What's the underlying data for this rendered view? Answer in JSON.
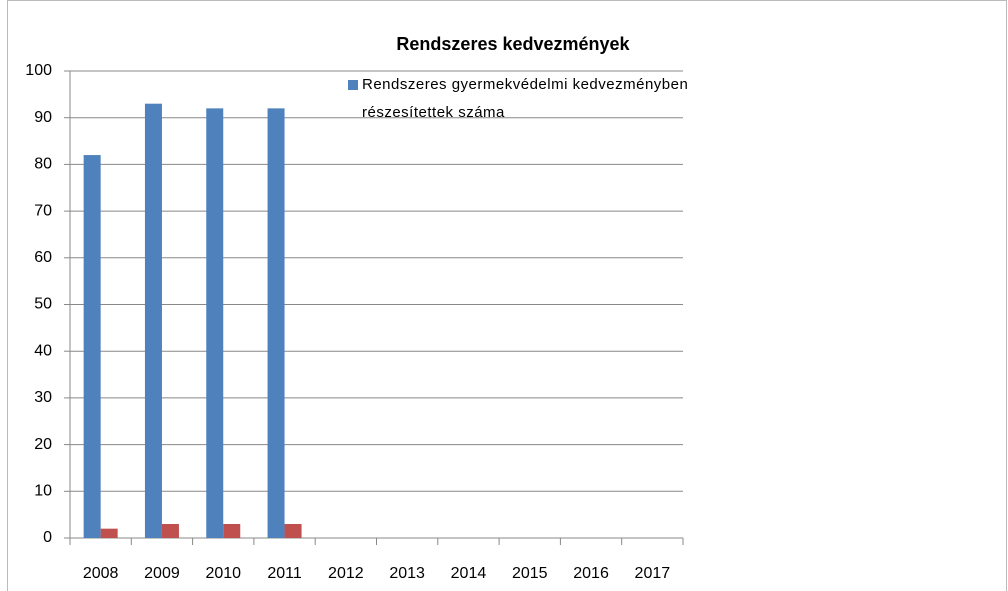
{
  "chart_data": {
    "type": "bar",
    "title": "Rendszeres kedvezmények",
    "categories": [
      "2008",
      "2009",
      "2010",
      "2011",
      "2012",
      "2013",
      "2014",
      "2015",
      "2016",
      "2017"
    ],
    "series": [
      {
        "name": "Rendszeres gyermekvédelmi kedvezményben részesítettek száma",
        "color": "#4f81bd",
        "values": [
          82,
          93,
          92,
          92,
          null,
          null,
          null,
          null,
          null,
          null
        ]
      },
      {
        "color": "#c0504d",
        "values": [
          2,
          3,
          3,
          3,
          null,
          null,
          null,
          null,
          null,
          null
        ]
      }
    ],
    "ylim": [
      0,
      100
    ],
    "yticks": [
      0,
      10,
      20,
      30,
      40,
      50,
      60,
      70,
      80,
      90,
      100
    ],
    "grid": true,
    "legend": "top-right"
  }
}
